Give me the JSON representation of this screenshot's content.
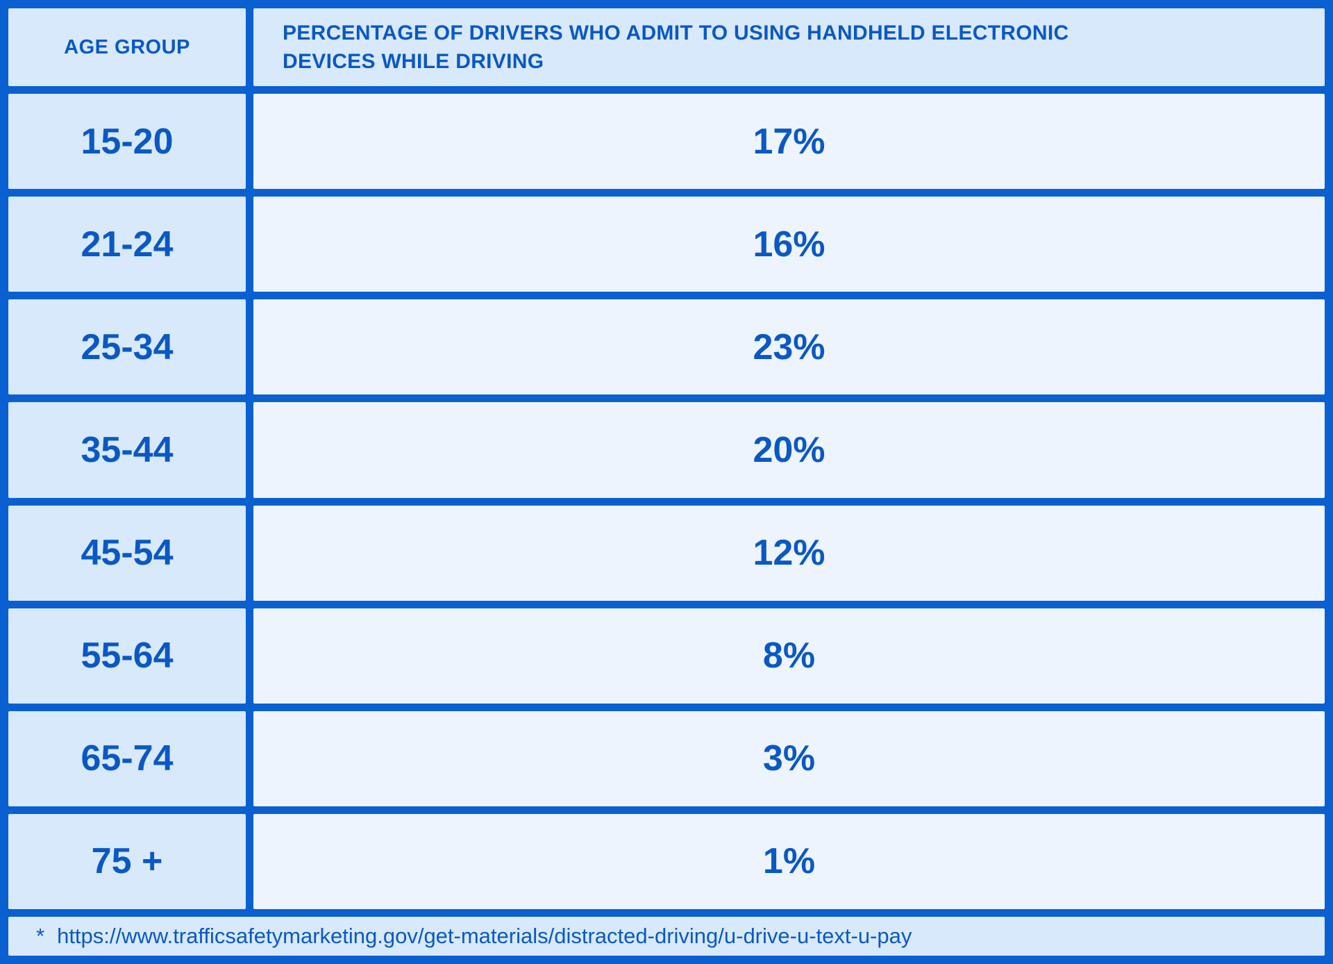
{
  "colors": {
    "border_blue": "#0a60d0",
    "text_blue": "#0a58c4",
    "shaded_cell_bg": "#d8e9fb",
    "light_cell_bg": "#eef4fd"
  },
  "table": {
    "col_age_header": "AGE GROUP",
    "col_pct_header": "PERCENTAGE OF DRIVERS WHO ADMIT TO USING HANDHELD ELECTRONIC DEVICES WHILE DRIVING",
    "rows": [
      {
        "age": "15-20",
        "pct": "17%"
      },
      {
        "age": "21-24",
        "pct": "16%"
      },
      {
        "age": "25-34",
        "pct": "23%"
      },
      {
        "age": "35-44",
        "pct": "20%"
      },
      {
        "age": "45-54",
        "pct": "12%"
      },
      {
        "age": "55-64",
        "pct": "8%"
      },
      {
        "age": "65-74",
        "pct": "3%"
      },
      {
        "age": "75 +",
        "pct": "1%"
      }
    ],
    "footnote_marker": "*",
    "footnote_url": "https://www.trafficsafetymarketing.gov/get-materials/distracted-driving/u-drive-u-text-u-pay"
  },
  "chart_data": {
    "type": "table",
    "title": "PERCENTAGE OF DRIVERS WHO ADMIT TO USING HANDHELD ELECTRONIC DEVICES WHILE DRIVING",
    "categories": [
      "15-20",
      "21-24",
      "25-34",
      "35-44",
      "45-54",
      "55-64",
      "65-74",
      "75 +"
    ],
    "values": [
      17,
      16,
      23,
      20,
      12,
      8,
      3,
      1
    ],
    "xlabel": "AGE GROUP",
    "ylabel": "Percentage of drivers",
    "source": "* https://www.trafficsafetymarketing.gov/get-materials/distracted-driving/u-drive-u-text-u-pay"
  }
}
